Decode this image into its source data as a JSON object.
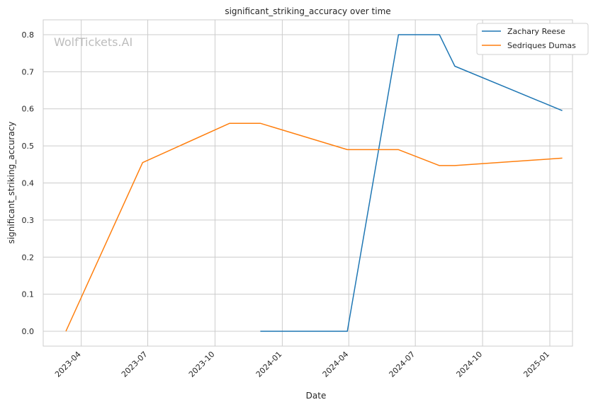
{
  "chart_data": {
    "type": "line",
    "title": "significant_striking_accuracy over time",
    "xlabel": "Date",
    "ylabel": "significant_striking_accuracy",
    "watermark": "WolfTickets.AI",
    "grid": true,
    "legend_position": "top-right",
    "x_axis": "date",
    "xlim": [
      "2023-02-08",
      "2025-02-01"
    ],
    "ylim": [
      -0.04,
      0.84
    ],
    "x_ticks": [
      "2023-04",
      "2023-07",
      "2023-10",
      "2024-01",
      "2024-04",
      "2024-07",
      "2024-10",
      "2025-01"
    ],
    "y_ticks": [
      "0.0",
      "0.1",
      "0.2",
      "0.3",
      "0.4",
      "0.5",
      "0.6",
      "0.7",
      "0.8"
    ],
    "series": [
      {
        "name": "Zachary Reese",
        "color": "#1f77b4",
        "points": [
          {
            "x": "2023-12-02",
            "y": 0.0
          },
          {
            "x": "2024-03-30",
            "y": 0.0
          },
          {
            "x": "2024-06-08",
            "y": 0.8
          },
          {
            "x": "2024-08-03",
            "y": 0.8
          },
          {
            "x": "2024-08-24",
            "y": 0.715
          },
          {
            "x": "2025-01-18",
            "y": 0.595
          }
        ]
      },
      {
        "name": "Sedriques Dumas",
        "color": "#ff7f0e",
        "points": [
          {
            "x": "2023-03-11",
            "y": 0.0
          },
          {
            "x": "2023-06-24",
            "y": 0.455
          },
          {
            "x": "2023-10-21",
            "y": 0.561
          },
          {
            "x": "2023-12-02",
            "y": 0.561
          },
          {
            "x": "2024-03-30",
            "y": 0.49
          },
          {
            "x": "2024-06-08",
            "y": 0.49
          },
          {
            "x": "2024-08-03",
            "y": 0.447
          },
          {
            "x": "2024-08-24",
            "y": 0.447
          },
          {
            "x": "2025-01-18",
            "y": 0.467
          }
        ]
      }
    ]
  }
}
